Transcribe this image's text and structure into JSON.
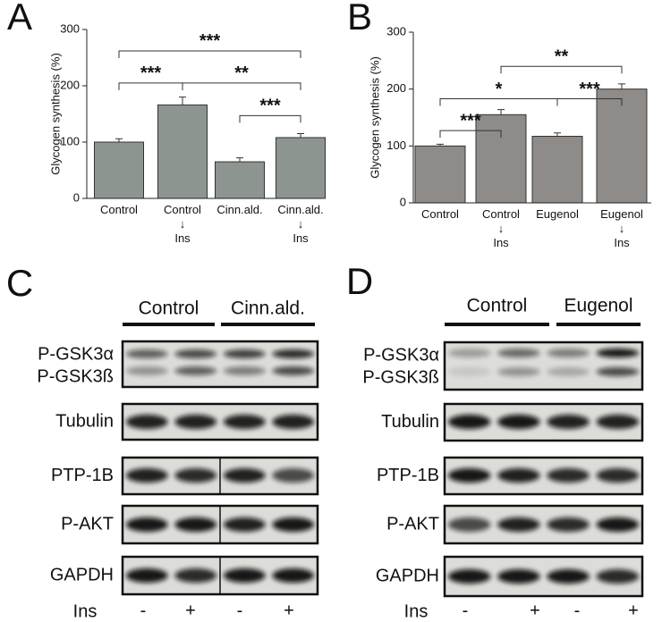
{
  "chart_data": [
    {
      "type": "bar",
      "panel": "A",
      "y_label": "Glycogen synthesis (%)",
      "categories": [
        "Control",
        "Control\n↓\nIns",
        "Cinn.ald.",
        "Cinn.ald.\n↓\nIns"
      ],
      "values": [
        100,
        166,
        65,
        108
      ],
      "errors": [
        6,
        14,
        7,
        7
      ],
      "color": "#8d9591",
      "ylim": [
        0,
        300
      ],
      "yticks": [
        0,
        100,
        200,
        300
      ],
      "annotations": [
        {
          "label": "***",
          "from": 0,
          "to": 3,
          "y": 262
        },
        {
          "label": "***",
          "from": 0,
          "to": 1,
          "y": 205
        },
        {
          "label": "**",
          "from": 1,
          "to": 3,
          "y": 205
        },
        {
          "label": "***",
          "from": 2,
          "to": 3,
          "y": 147
        }
      ]
    },
    {
      "type": "bar",
      "panel": "B",
      "y_label": "Glycogen synthesis (%)",
      "categories": [
        "Control",
        "Control\n↓\nIns",
        "Eugenol",
        "Eugenol\n↓\nIns"
      ],
      "values": [
        100,
        155,
        117,
        200
      ],
      "errors": [
        3,
        9,
        6,
        9
      ],
      "color": "#8e8b88",
      "ylim": [
        0,
        300
      ],
      "yticks": [
        0,
        100,
        200,
        300
      ],
      "annotations": [
        {
          "label": "**",
          "from": 1,
          "to": 3,
          "y": 240
        },
        {
          "label": "*",
          "from": 0,
          "to": 2,
          "y": 183
        },
        {
          "label": "***",
          "from": 2,
          "to": 3,
          "y": 183
        },
        {
          "label": "***",
          "from": 0,
          "to": 1,
          "y": 127
        }
      ]
    }
  ],
  "blots": [
    {
      "panel": "C",
      "groups": [
        "Control",
        "Cinn.ald."
      ],
      "rows": [
        [
          "P-GSK3α",
          "P-GSK3ß"
        ],
        [
          "Tubulin"
        ],
        [
          "PTP-1B"
        ],
        [
          "P-AKT"
        ],
        [
          "GAPDH"
        ]
      ],
      "ins_label": "Ins",
      "lanes": [
        "-",
        "+",
        "-",
        "+"
      ]
    },
    {
      "panel": "D",
      "groups": [
        "Control",
        "Eugenol"
      ],
      "rows": [
        [
          "P-GSK3α",
          "P-GSK3ß"
        ],
        [
          "Tubulin"
        ],
        [
          "PTP-1B"
        ],
        [
          "P-AKT"
        ],
        [
          "GAPDH"
        ]
      ],
      "ins_label": "Ins",
      "lanes": [
        "-",
        "+",
        "-",
        "+"
      ]
    }
  ]
}
